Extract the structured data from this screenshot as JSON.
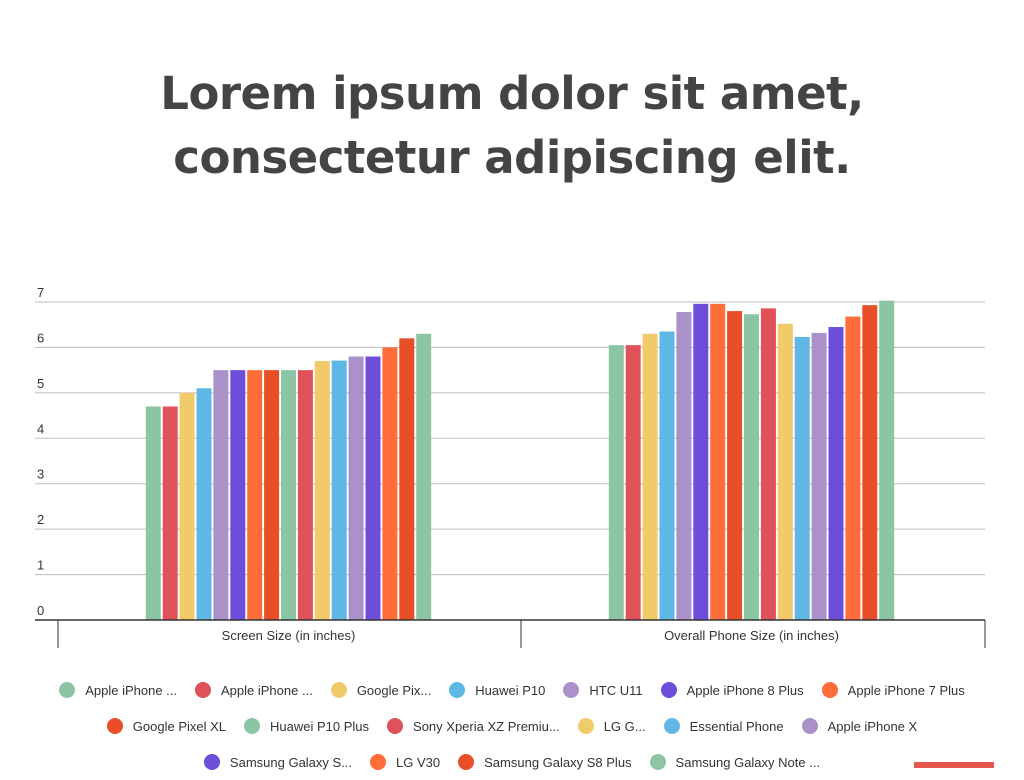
{
  "title_lines": [
    "Lorem ipsum dolor sit amet,",
    "consectetur adipiscing elit."
  ],
  "chart_data": {
    "type": "bar",
    "categories": [
      "Screen Size (in inches)",
      "Overall Phone Size (in inches)"
    ],
    "ylim": [
      0,
      7
    ],
    "yticks": [
      0,
      1,
      2,
      3,
      4,
      5,
      6,
      7
    ],
    "grid": true,
    "legend_position": "bottom",
    "series": [
      {
        "name": "Apple iPhone ...",
        "color": "#8cc5a4",
        "values": [
          4.7,
          6.05
        ]
      },
      {
        "name": "Apple iPhone ...",
        "color": "#e0525a",
        "values": [
          4.7,
          6.05
        ]
      },
      {
        "name": "Google Pix...",
        "color": "#f1ca6a",
        "values": [
          5.0,
          6.3
        ]
      },
      {
        "name": "Huawei P10",
        "color": "#5eb7e5",
        "values": [
          5.1,
          6.35
        ]
      },
      {
        "name": "HTC U11",
        "color": "#ab91c9",
        "values": [
          5.5,
          6.78
        ]
      },
      {
        "name": "Apple iPhone 8 Plus",
        "color": "#6d4edb",
        "values": [
          5.5,
          6.96
        ]
      },
      {
        "name": "Apple iPhone 7 Plus",
        "color": "#ff6d3a",
        "values": [
          5.5,
          6.96
        ]
      },
      {
        "name": "Google Pixel XL",
        "color": "#e84f28",
        "values": [
          5.5,
          6.8
        ]
      },
      {
        "name": "Huawei P10 Plus",
        "color": "#8cc5a4",
        "values": [
          5.5,
          6.73
        ]
      },
      {
        "name": "Sony Xperia XZ Premiu...",
        "color": "#e0525a",
        "values": [
          5.5,
          6.86
        ]
      },
      {
        "name": "LG G...",
        "color": "#f1ca6a",
        "values": [
          5.7,
          6.52
        ]
      },
      {
        "name": "Essential Phone",
        "color": "#5eb7e5",
        "values": [
          5.71,
          6.23
        ]
      },
      {
        "name": "Apple iPhone X",
        "color": "#ab91c9",
        "values": [
          5.8,
          6.32
        ]
      },
      {
        "name": "Samsung Galaxy S...",
        "color": "#6d4edb",
        "values": [
          5.8,
          6.45
        ]
      },
      {
        "name": "LG V30",
        "color": "#ff6d3a",
        "values": [
          6.0,
          6.68
        ]
      },
      {
        "name": "Samsung Galaxy S8 Plus",
        "color": "#e84f28",
        "values": [
          6.2,
          6.93
        ]
      },
      {
        "name": "Samsung Galaxy Note ...",
        "color": "#8cc5a4",
        "values": [
          6.3,
          7.03
        ]
      }
    ]
  },
  "legend_rows": [
    [
      0,
      1,
      2,
      3,
      4,
      5,
      6
    ],
    [
      7,
      8,
      9,
      10,
      11,
      12
    ],
    [
      13,
      14,
      15,
      16
    ]
  ],
  "colors": {
    "title": "#444444",
    "gridline": "#bdbdbd",
    "axis": "#333333",
    "badge": "#e8554e"
  }
}
